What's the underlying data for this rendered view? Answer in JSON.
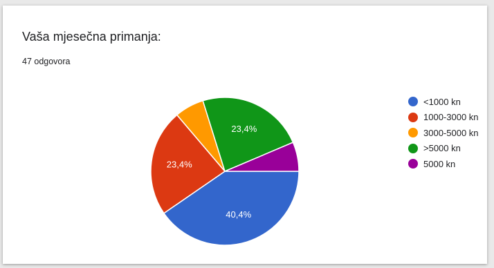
{
  "card": {
    "title": "Vaša mjesečna primanja:",
    "responses": "47 odgovora"
  },
  "chart_data": {
    "type": "pie",
    "categories": [
      "<1000 kn",
      "1000-3000 kn",
      "3000-5000 kn",
      ">5000 kn",
      "5000 kn"
    ],
    "values": [
      40.4,
      23.4,
      6.4,
      23.4,
      6.4
    ],
    "data_labels": [
      "40,4%",
      "23,4%",
      "",
      "23,4%",
      ""
    ],
    "colors": [
      "#3366cc",
      "#dc3912",
      "#ff9900",
      "#109618",
      "#990099"
    ],
    "legend_position": "right"
  }
}
